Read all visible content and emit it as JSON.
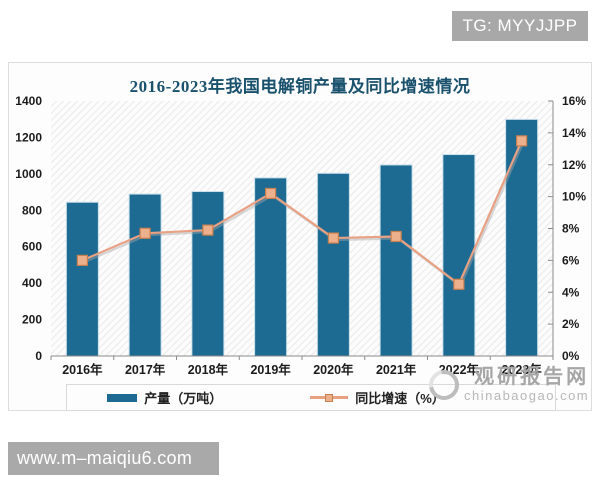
{
  "overlays": {
    "tg_badge": "TG: MYYJJPP",
    "bottom_banner": "www.m–maiqiu6.com"
  },
  "watermark": {
    "site_name": "观研报告网",
    "site_domain": "chinabaogao.com"
  },
  "chart_data": {
    "type": "bar",
    "combo": "bar+line dual axis",
    "title": "2016-2023年我国电解铜产量及同比增速情况",
    "categories": [
      "2016年",
      "2017年",
      "2018年",
      "2019年",
      "2020年",
      "2021年",
      "2022年",
      "2023年"
    ],
    "series": [
      {
        "name": "产量（万吨）",
        "type": "bar",
        "axis": "left",
        "color": "#1d6b92",
        "values": [
          844,
          889,
          903,
          978,
          1003,
          1049,
          1106,
          1299
        ]
      },
      {
        "name": "同比增速（%）",
        "type": "line",
        "axis": "right",
        "color": "#e9a184",
        "marker_fill": "#edb08c",
        "marker_stroke": "#c9804f",
        "values": [
          6.0,
          7.7,
          7.9,
          10.2,
          7.4,
          7.5,
          4.5,
          13.5
        ]
      }
    ],
    "left_axis": {
      "min": 0,
      "max": 1400,
      "step": 200,
      "ticks": [
        "0",
        "200",
        "400",
        "600",
        "800",
        "1000",
        "1200",
        "1400"
      ]
    },
    "right_axis": {
      "min": 0,
      "max": 16,
      "step": 2,
      "ticks": [
        "0%",
        "2%",
        "4%",
        "6%",
        "8%",
        "10%",
        "12%",
        "14%",
        "16%"
      ]
    },
    "legend_position": "bottom",
    "grid": false,
    "plot_background": "diagonal-hatch"
  }
}
